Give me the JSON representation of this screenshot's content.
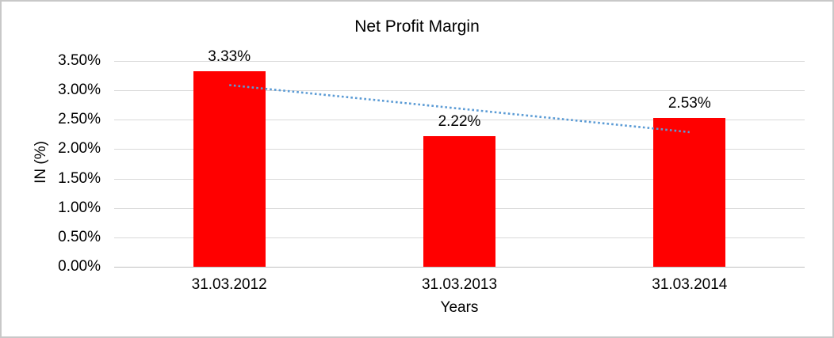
{
  "chart_data": {
    "type": "bar",
    "title": "Net Profit Margin",
    "xlabel": "Years",
    "ylabel": "IN (%)",
    "categories": [
      "31.03.2012",
      "31.03.2013",
      "31.03.2014"
    ],
    "values": [
      3.33,
      2.22,
      2.53
    ],
    "value_labels": [
      "3.33%",
      "2.22%",
      "2.53%"
    ],
    "ylim": [
      0,
      3.5
    ],
    "ytick_labels": [
      "3.50%",
      "3.00%",
      "2.50%",
      "2.00%",
      "1.50%",
      "1.00%",
      "0.50%",
      "0.00%"
    ],
    "ytick_values": [
      3.5,
      3.0,
      2.5,
      2.0,
      1.5,
      1.0,
      0.5,
      0.0
    ],
    "grid": true,
    "legend": "none",
    "bar_color": "#FF0000",
    "trendline": {
      "type": "linear",
      "style": "dotted",
      "color": "#5B9BD5",
      "start_value": 3.09,
      "end_value": 2.29
    }
  },
  "colors": {
    "gridline": "#D9D9D9",
    "axis_line": "#BFBFBF",
    "frame_border": "#C8C8C8",
    "background": "#FFFFFF",
    "text": "#000000"
  }
}
